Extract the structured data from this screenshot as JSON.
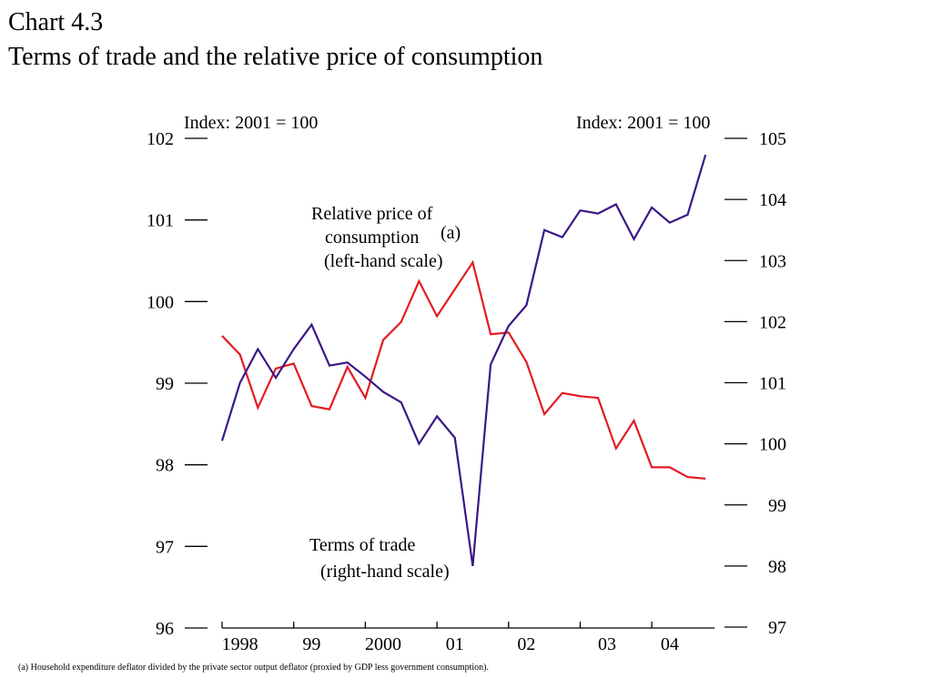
{
  "title": {
    "line1": "Chart 4.3",
    "line2": "Terms of trade and the relative price of consumption"
  },
  "footnote": "(a)  Household expenditure deflator divided by the private sector output deflator (proxied by GDP less government consumption).",
  "chart_data": {
    "type": "line",
    "left_axis": {
      "label": "Index:  2001 = 100",
      "ylim": [
        96,
        102
      ],
      "ticks": [
        96,
        97,
        98,
        99,
        100,
        101,
        102
      ]
    },
    "right_axis": {
      "label": "Index:  2001 = 100",
      "ylim": [
        97,
        105
      ],
      "ticks": [
        97,
        98,
        99,
        100,
        101,
        102,
        103,
        104,
        105
      ]
    },
    "x_tick_labels": [
      "1998",
      "99",
      "2000",
      "01",
      "02",
      "03",
      "04"
    ],
    "x_tick_label_positions": [
      1.0,
      5.0,
      9.0,
      13.0,
      17.0,
      21.5,
      25.0
    ],
    "x_range": [
      0,
      27.5
    ],
    "x_major_ticks": [
      0,
      4,
      8,
      12,
      16,
      20,
      24
    ],
    "grid": false,
    "series": [
      {
        "name": "Relative price of consumption(a) (left-hand scale)",
        "axis": "left",
        "color": "#e31b23",
        "x": [
          0,
          1,
          2,
          3,
          4,
          5,
          6,
          7,
          8,
          9,
          10,
          11,
          12,
          13,
          14,
          15,
          16,
          17,
          18,
          19,
          20,
          21,
          22,
          23,
          24,
          25,
          26,
          27
        ],
        "values": [
          99.58,
          99.35,
          98.7,
          99.18,
          99.24,
          98.72,
          98.68,
          99.2,
          98.82,
          99.53,
          99.75,
          100.25,
          99.82,
          100.15,
          100.48,
          99.6,
          99.62,
          99.26,
          98.62,
          98.88,
          98.84,
          98.82,
          98.2,
          98.54,
          97.97,
          97.97,
          97.85,
          97.83
        ]
      },
      {
        "name": "Terms of trade (right-hand scale)",
        "axis": "right",
        "color": "#3b1787",
        "x": [
          0,
          1,
          2,
          3,
          4,
          5,
          6,
          7,
          8,
          9,
          10,
          11,
          12,
          13,
          14,
          15,
          16,
          17,
          18,
          19,
          20,
          21,
          22,
          23,
          24,
          25,
          26,
          27
        ],
        "values": [
          100.05,
          101.0,
          101.55,
          101.08,
          101.55,
          101.95,
          101.28,
          101.33,
          101.1,
          100.85,
          100.68,
          100.0,
          100.45,
          100.1,
          98.0,
          101.3,
          101.93,
          102.27,
          103.5,
          103.38,
          103.82,
          103.77,
          103.92,
          103.35,
          103.87,
          103.62,
          103.75,
          104.73
        ]
      }
    ],
    "annotations": {
      "relative_price_line1": "Relative price of",
      "relative_price_line2": "consumption",
      "relative_price_sup": "(a)",
      "relative_price_line3": "(left-hand scale)",
      "terms_line1": "Terms of trade",
      "terms_line2": "(right-hand scale)"
    }
  }
}
